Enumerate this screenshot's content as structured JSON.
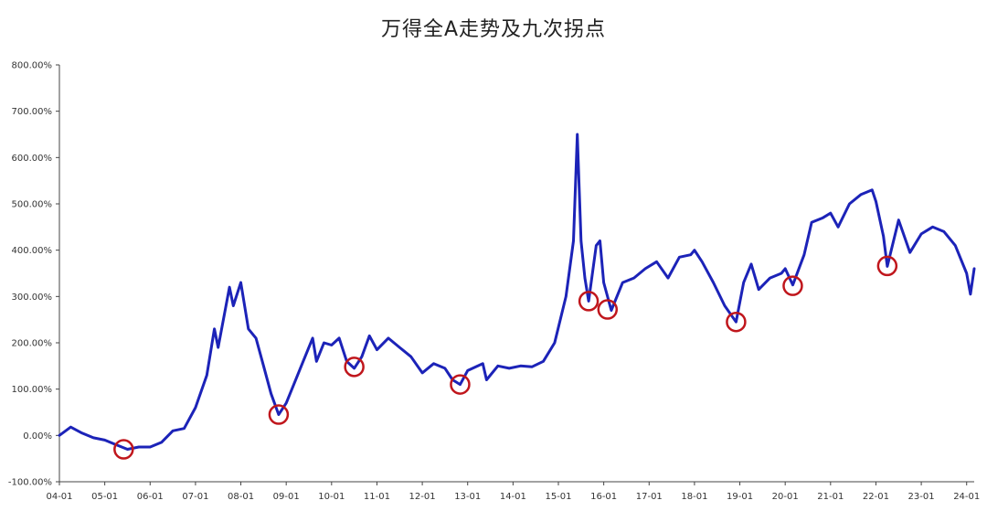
{
  "chart_data": {
    "type": "line",
    "title": "万得全A走势及九次拐点",
    "xlabel": "",
    "ylabel": "",
    "y_unit": "%",
    "ylim": [
      -100,
      800
    ],
    "y_ticks": [
      -100,
      0,
      100,
      200,
      300,
      400,
      500,
      600,
      700,
      800
    ],
    "y_tick_labels": [
      "-100.00%",
      "0.00%",
      "100.00%",
      "200.00%",
      "300.00%",
      "400.00%",
      "500.00%",
      "600.00%",
      "700.00%",
      "800.00%"
    ],
    "xlim": [
      "2004-01",
      "2024-03"
    ],
    "x_ticks": [
      "2004-01",
      "2005-01",
      "2006-01",
      "2007-01",
      "2008-01",
      "2009-01",
      "2010-01",
      "2011-01",
      "2012-01",
      "2013-01",
      "2014-01",
      "2015-01",
      "2016-01",
      "2017-01",
      "2018-01",
      "2019-01",
      "2020-01",
      "2021-01",
      "2022-01",
      "2023-01",
      "2024-01"
    ],
    "x_tick_labels": [
      "04-01",
      "05-01",
      "06-01",
      "07-01",
      "08-01",
      "09-01",
      "10-01",
      "11-01",
      "12-01",
      "13-01",
      "14-01",
      "15-01",
      "16-01",
      "17-01",
      "18-01",
      "19-01",
      "20-01",
      "21-01",
      "22-01",
      "23-01",
      "24-01"
    ],
    "grid": false,
    "legend": "none",
    "line_color": "#1c23b8",
    "marker_color": "#c0161c",
    "series": [
      {
        "name": "",
        "points": [
          [
            "2004-01",
            0
          ],
          [
            "2004-04",
            18
          ],
          [
            "2004-07",
            5
          ],
          [
            "2004-10",
            -5
          ],
          [
            "2005-01",
            -10
          ],
          [
            "2005-04",
            -20
          ],
          [
            "2005-07",
            -30
          ],
          [
            "2005-10",
            -25
          ],
          [
            "2006-01",
            -25
          ],
          [
            "2006-04",
            -15
          ],
          [
            "2006-07",
            10
          ],
          [
            "2006-10",
            15
          ],
          [
            "2007-01",
            60
          ],
          [
            "2007-04",
            130
          ],
          [
            "2007-06",
            230
          ],
          [
            "2007-07",
            190
          ],
          [
            "2007-10",
            320
          ],
          [
            "2007-11",
            280
          ],
          [
            "2008-01",
            330
          ],
          [
            "2008-03",
            230
          ],
          [
            "2008-05",
            210
          ],
          [
            "2008-07",
            150
          ],
          [
            "2008-09",
            90
          ],
          [
            "2008-11",
            45
          ],
          [
            "2009-01",
            70
          ],
          [
            "2009-03",
            110
          ],
          [
            "2009-05",
            150
          ],
          [
            "2009-08",
            210
          ],
          [
            "2009-09",
            160
          ],
          [
            "2009-11",
            200
          ],
          [
            "2010-01",
            195
          ],
          [
            "2010-03",
            210
          ],
          [
            "2010-05",
            160
          ],
          [
            "2010-07",
            145
          ],
          [
            "2010-09",
            170
          ],
          [
            "2010-11",
            215
          ],
          [
            "2011-01",
            185
          ],
          [
            "2011-04",
            210
          ],
          [
            "2011-07",
            190
          ],
          [
            "2011-10",
            170
          ],
          [
            "2012-01",
            135
          ],
          [
            "2012-04",
            155
          ],
          [
            "2012-07",
            145
          ],
          [
            "2012-09",
            120
          ],
          [
            "2012-11",
            110
          ],
          [
            "2013-01",
            140
          ],
          [
            "2013-05",
            155
          ],
          [
            "2013-06",
            120
          ],
          [
            "2013-09",
            150
          ],
          [
            "2013-12",
            145
          ],
          [
            "2014-03",
            150
          ],
          [
            "2014-06",
            148
          ],
          [
            "2014-09",
            160
          ],
          [
            "2014-12",
            200
          ],
          [
            "2015-03",
            300
          ],
          [
            "2015-05",
            420
          ],
          [
            "2015-06",
            650
          ],
          [
            "2015-07",
            420
          ],
          [
            "2015-08",
            340
          ],
          [
            "2015-09",
            290
          ],
          [
            "2015-11",
            410
          ],
          [
            "2015-12",
            420
          ],
          [
            "2016-01",
            330
          ],
          [
            "2016-03",
            270
          ],
          [
            "2016-06",
            330
          ],
          [
            "2016-09",
            340
          ],
          [
            "2016-12",
            360
          ],
          [
            "2017-03",
            375
          ],
          [
            "2017-06",
            340
          ],
          [
            "2017-09",
            385
          ],
          [
            "2017-12",
            390
          ],
          [
            "2018-01",
            400
          ],
          [
            "2018-03",
            375
          ],
          [
            "2018-06",
            330
          ],
          [
            "2018-09",
            280
          ],
          [
            "2018-12",
            245
          ],
          [
            "2019-02",
            330
          ],
          [
            "2019-04",
            370
          ],
          [
            "2019-06",
            315
          ],
          [
            "2019-09",
            340
          ],
          [
            "2019-12",
            350
          ],
          [
            "2020-01",
            360
          ],
          [
            "2020-03",
            325
          ],
          [
            "2020-06",
            390
          ],
          [
            "2020-08",
            460
          ],
          [
            "2020-11",
            470
          ],
          [
            "2021-01",
            480
          ],
          [
            "2021-03",
            450
          ],
          [
            "2021-06",
            500
          ],
          [
            "2021-09",
            520
          ],
          [
            "2021-12",
            530
          ],
          [
            "2022-01",
            505
          ],
          [
            "2022-03",
            430
          ],
          [
            "2022-04",
            365
          ],
          [
            "2022-07",
            465
          ],
          [
            "2022-10",
            395
          ],
          [
            "2023-01",
            435
          ],
          [
            "2023-04",
            450
          ],
          [
            "2023-07",
            440
          ],
          [
            "2023-10",
            410
          ],
          [
            "2024-01",
            350
          ],
          [
            "2024-02",
            305
          ],
          [
            "2024-03",
            360
          ]
        ]
      }
    ],
    "turning_points": [
      [
        "2005-06",
        -30
      ],
      [
        "2008-11",
        45
      ],
      [
        "2010-07",
        148
      ],
      [
        "2012-11",
        110
      ],
      [
        "2015-09",
        290
      ],
      [
        "2016-02",
        272
      ],
      [
        "2018-12",
        245
      ],
      [
        "2020-03",
        323
      ],
      [
        "2022-04",
        366
      ]
    ]
  }
}
